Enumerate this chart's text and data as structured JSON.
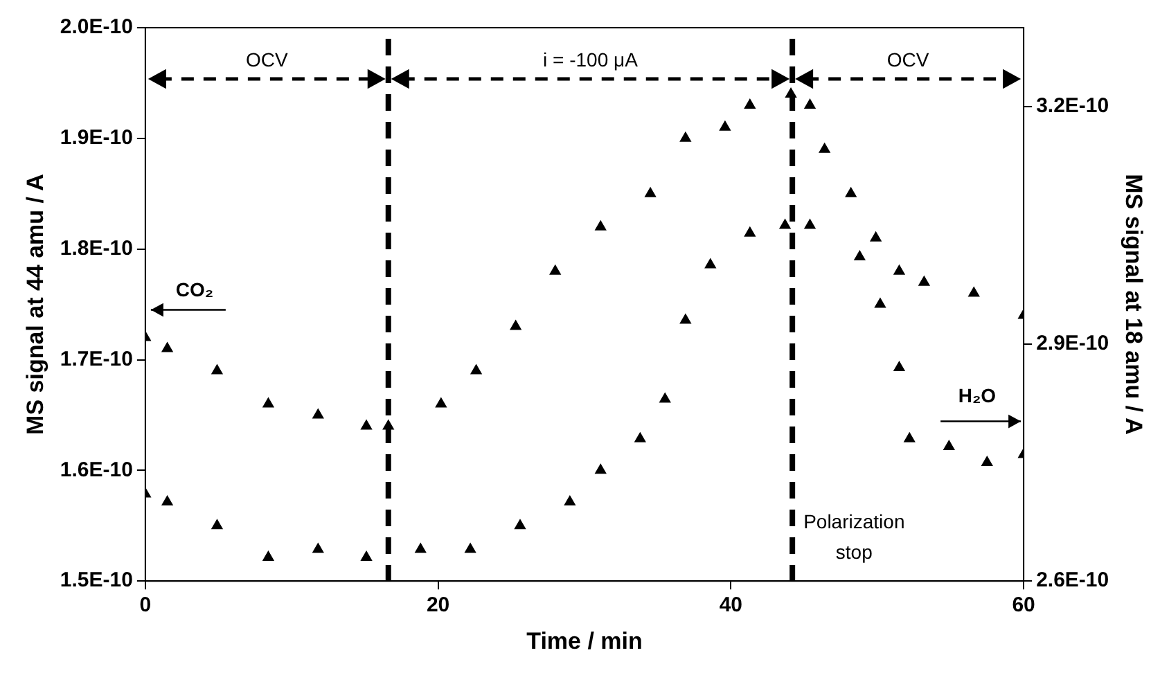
{
  "chart_data": {
    "type": "scatter",
    "xlabel": "Time / min",
    "ylabel": "MS signal at 44 amu / A",
    "y2label": "MS signal at 18 amu / A",
    "xlim": [
      0,
      60
    ],
    "xticks": [
      0,
      20,
      40,
      60
    ],
    "ylim": [
      1.5e-10,
      2e-10
    ],
    "yticks": [
      {
        "value": 1.5e-10,
        "label": "1.5E-10"
      },
      {
        "value": 1.6e-10,
        "label": "1.6E-10"
      },
      {
        "value": 1.7e-10,
        "label": "1.7E-10"
      },
      {
        "value": 1.8e-10,
        "label": "1.8E-10"
      },
      {
        "value": 1.9e-10,
        "label": "1.9E-10"
      },
      {
        "value": 2e-10,
        "label": "2.0E-10"
      }
    ],
    "y2lim": [
      2.6e-10,
      3.3e-10
    ],
    "y2ticks": [
      {
        "value": 2.6e-10,
        "label": "2.6E-10"
      },
      {
        "value": 2.9e-10,
        "label": "2.9E-10"
      },
      {
        "value": 3.2e-10,
        "label": "3.2E-10"
      }
    ],
    "grid": false,
    "legend": false,
    "marker": "triangle",
    "series": [
      {
        "name": "CO₂",
        "color": "#000000",
        "axis": "y",
        "x": [
          0,
          1.5,
          4.9,
          8.4,
          11.8,
          15.1,
          16.6,
          20.2,
          22.6,
          25.3,
          28,
          31.1,
          34.5,
          36.9,
          39.6,
          41.3,
          44.1,
          45.4,
          46.4,
          48.2,
          49.9,
          51.5,
          53.2,
          56.6,
          60
        ],
        "values": [
          1.72e-10,
          1.71e-10,
          1.69e-10,
          1.66e-10,
          1.65e-10,
          1.64e-10,
          1.64e-10,
          1.66e-10,
          1.69e-10,
          1.73e-10,
          1.78e-10,
          1.82e-10,
          1.85e-10,
          1.9e-10,
          1.91e-10,
          1.93e-10,
          1.94e-10,
          1.93e-10,
          1.89e-10,
          1.85e-10,
          1.81e-10,
          1.78e-10,
          1.77e-10,
          1.76e-10,
          1.74e-10
        ]
      },
      {
        "name": "H₂O",
        "color": "#000000",
        "axis": "y2",
        "x": [
          0,
          1.5,
          4.9,
          8.4,
          11.8,
          15.1,
          18.8,
          22.2,
          25.6,
          29,
          31.1,
          33.8,
          35.5,
          36.9,
          38.6,
          41.3,
          43.7,
          45.4,
          48.8,
          50.2,
          51.5,
          52.2,
          54.9,
          57.5,
          60
        ],
        "values": [
          2.71e-10,
          2.7e-10,
          2.67e-10,
          2.63e-10,
          2.64e-10,
          2.63e-10,
          2.64e-10,
          2.64e-10,
          2.67e-10,
          2.7e-10,
          2.74e-10,
          2.78e-10,
          2.83e-10,
          2.93e-10,
          3e-10,
          3.04e-10,
          3.05e-10,
          3.05e-10,
          3.01e-10,
          2.95e-10,
          2.87e-10,
          2.78e-10,
          2.77e-10,
          2.75e-10,
          2.76e-10
        ]
      }
    ],
    "ref_lines": [
      {
        "axis": "x",
        "value": 16.6,
        "line_style": "dashed"
      },
      {
        "axis": "x",
        "value": 44.2,
        "label": "Polarization stop",
        "line_style": "dashed"
      }
    ],
    "annotations": [
      "OCV",
      "i = -100 μA",
      "OCV"
    ]
  }
}
